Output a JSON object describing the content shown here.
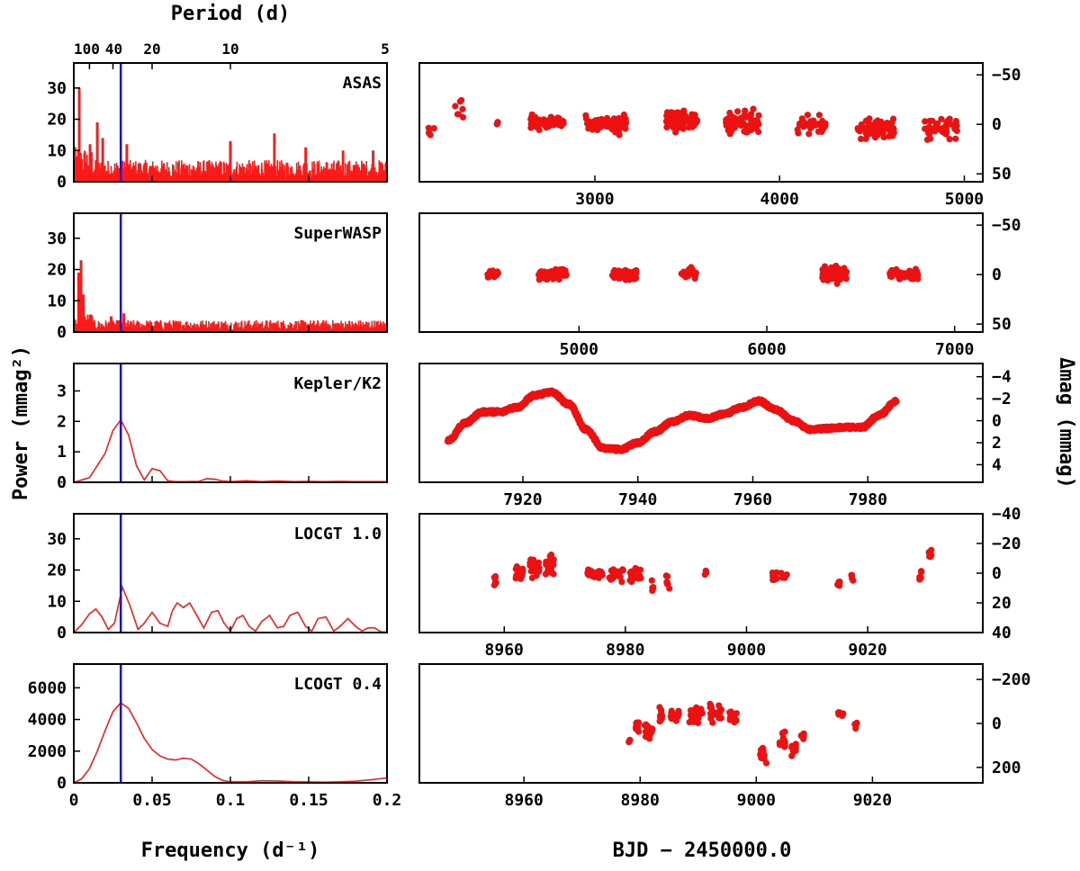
{
  "figure": {
    "left_xlabel": "Frequency (d⁻¹)",
    "right_xlabel": "BJD − 2450000.0",
    "left_ylabel": "Power (mmag²)",
    "right_ylabel": "Δmag (mmag)",
    "top_axis_label": "Period (d)",
    "line_color": "#ff1a1a",
    "marker_color": "#1010ee",
    "point_color": "#ee1111"
  },
  "chart_data": [
    {
      "type": "line",
      "name": "periodogram-asas",
      "title": "ASAS",
      "xlim": [
        0,
        0.2
      ],
      "ylim": [
        0,
        38
      ],
      "xticks": [
        0,
        0.05,
        0.1,
        0.15,
        0.2
      ],
      "yticks": [
        0,
        10,
        20,
        30
      ],
      "ytick_labels": [
        "0",
        "10",
        "20",
        "30"
      ],
      "top_axis": {
        "label": "Period (d)",
        "ticks": [
          {
            "label": "100",
            "freq": 0.01
          },
          {
            "label": "40",
            "freq": 0.025
          },
          {
            "label": "20",
            "freq": 0.05
          },
          {
            "label": "10",
            "freq": 0.1
          },
          {
            "label": "5",
            "freq": 0.2
          }
        ]
      },
      "marker_freq": 0.03,
      "peaks": [
        {
          "f": 0.0035,
          "p": 30
        },
        {
          "f": 0.015,
          "p": 19
        },
        {
          "f": 0.0185,
          "p": 14
        },
        {
          "f": 0.0105,
          "p": 12
        },
        {
          "f": 0.034,
          "p": 12
        },
        {
          "f": 0.1,
          "p": 13
        },
        {
          "f": 0.128,
          "p": 15.5
        },
        {
          "f": 0.148,
          "p": 11
        },
        {
          "f": 0.172,
          "p": 10
        },
        {
          "f": 0.191,
          "p": 10
        }
      ],
      "noise_level": 4.5
    },
    {
      "type": "line",
      "name": "periodogram-superwasp",
      "title": "SuperWASP",
      "xlim": [
        0,
        0.2
      ],
      "ylim": [
        0,
        38
      ],
      "xticks": [
        0,
        0.05,
        0.1,
        0.15,
        0.2
      ],
      "yticks": [
        0,
        10,
        20,
        30
      ],
      "ytick_labels": [
        "0",
        "10",
        "20",
        "30"
      ],
      "marker_freq": 0.03,
      "peaks": [
        {
          "f": 0.0045,
          "p": 23
        },
        {
          "f": 0.003,
          "p": 19
        },
        {
          "f": 0.006,
          "p": 12
        },
        {
          "f": 0.032,
          "p": 6
        },
        {
          "f": 0.024,
          "p": 5
        }
      ],
      "noise_level": 2.5
    },
    {
      "type": "line",
      "name": "periodogram-kepler-k2",
      "title": "Kepler/K2",
      "xlim": [
        0,
        0.2
      ],
      "ylim": [
        0,
        3.9
      ],
      "xticks": [
        0,
        0.05,
        0.1,
        0.15,
        0.2
      ],
      "yticks": [
        0,
        1,
        2,
        3
      ],
      "ytick_labels": [
        "0",
        "1",
        "2",
        "3"
      ],
      "marker_freq": 0.03,
      "curve": {
        "x": [
          0,
          0.01,
          0.02,
          0.025,
          0.03,
          0.035,
          0.04,
          0.045,
          0.05,
          0.055,
          0.06,
          0.065,
          0.07,
          0.08,
          0.085,
          0.09,
          0.095,
          0.1,
          0.11,
          0.12,
          0.13,
          0.14,
          0.15,
          0.16,
          0.17,
          0.18,
          0.19,
          0.2
        ],
        "y": [
          0.0,
          0.15,
          0.95,
          1.7,
          2.05,
          1.55,
          0.55,
          0.08,
          0.45,
          0.38,
          0.05,
          0.02,
          0.02,
          0.03,
          0.12,
          0.1,
          0.04,
          0.02,
          0.05,
          0.02,
          0.04,
          0.02,
          0.03,
          0.02,
          0.03,
          0.02,
          0.02,
          0.02
        ]
      }
    },
    {
      "type": "line",
      "name": "periodogram-lcogt-1.0",
      "title": "LOCGT 1.0",
      "xlim": [
        0,
        0.2
      ],
      "ylim": [
        0,
        38
      ],
      "xticks": [
        0,
        0.05,
        0.1,
        0.15,
        0.2
      ],
      "yticks": [
        0,
        10,
        20,
        30
      ],
      "ytick_labels": [
        "0",
        "10",
        "20",
        "30"
      ],
      "marker_freq": 0.03,
      "curve": {
        "x": [
          0,
          0.005,
          0.01,
          0.014,
          0.018,
          0.022,
          0.026,
          0.031,
          0.036,
          0.041,
          0.045,
          0.05,
          0.055,
          0.06,
          0.063,
          0.066,
          0.07,
          0.074,
          0.078,
          0.083,
          0.088,
          0.092,
          0.096,
          0.1,
          0.104,
          0.108,
          0.112,
          0.116,
          0.12,
          0.125,
          0.13,
          0.134,
          0.138,
          0.143,
          0.148,
          0.152,
          0.156,
          0.161,
          0.166,
          0.17,
          0.175,
          0.18,
          0.184,
          0.188,
          0.192,
          0.196,
          0.2
        ],
        "y": [
          0,
          2.5,
          6,
          7.5,
          5,
          1,
          3,
          14.5,
          8.5,
          1,
          3,
          6.5,
          3,
          2,
          7,
          9.5,
          8,
          9.5,
          6,
          1.5,
          6.5,
          7,
          3,
          0.5,
          4.5,
          5.5,
          2,
          0.5,
          3.5,
          5.5,
          1.5,
          2,
          5.5,
          6.5,
          2,
          0.5,
          4.5,
          5,
          0.5,
          2,
          4.5,
          2,
          0.5,
          1.5,
          1.5,
          0.3,
          0.1
        ]
      }
    },
    {
      "type": "line",
      "name": "periodogram-lcogt-0.4",
      "title": "LCOGT 0.4",
      "xlim": [
        0,
        0.2
      ],
      "ylim": [
        0,
        7500
      ],
      "xticks": [
        0,
        0.05,
        0.1,
        0.15,
        0.2
      ],
      "xtick_labels": [
        "0",
        "0.05",
        "0.1",
        "0.15",
        "0.2"
      ],
      "yticks": [
        0,
        2000,
        4000,
        6000
      ],
      "ytick_labels": [
        "0",
        "2000",
        "4000",
        "6000"
      ],
      "marker_freq": 0.03,
      "curve": {
        "x": [
          0,
          0.005,
          0.01,
          0.015,
          0.02,
          0.025,
          0.03,
          0.035,
          0.04,
          0.045,
          0.05,
          0.055,
          0.06,
          0.065,
          0.07,
          0.075,
          0.08,
          0.085,
          0.09,
          0.095,
          0.1,
          0.11,
          0.12,
          0.13,
          0.14,
          0.15,
          0.16,
          0.17,
          0.18,
          0.19,
          0.2
        ],
        "y": [
          0,
          250,
          900,
          2000,
          3300,
          4500,
          5050,
          4700,
          3800,
          2800,
          2100,
          1700,
          1500,
          1450,
          1550,
          1500,
          1200,
          800,
          400,
          150,
          60,
          60,
          130,
          120,
          70,
          50,
          40,
          60,
          100,
          200,
          300
        ]
      }
    },
    {
      "type": "scatter",
      "name": "lightcurve-asas",
      "xlim": [
        2050,
        5100
      ],
      "ylim": [
        58,
        -62
      ],
      "xticks": [
        3000,
        4000,
        5000
      ],
      "xtick_labels": [
        "3000",
        "4000",
        "5000"
      ],
      "yticks": [
        -50,
        0,
        50
      ],
      "ytick_labels": [
        "−50",
        "0",
        "50"
      ],
      "clusters": [
        {
          "center": 2120,
          "width": 40,
          "n": 5,
          "mean": 7,
          "spread": 16
        },
        {
          "center": 2260,
          "width": 60,
          "n": 7,
          "mean": -15,
          "spread": 28
        },
        {
          "center": 2470,
          "width": 10,
          "n": 3,
          "mean": -1,
          "spread": 8
        },
        {
          "center": 2740,
          "width": 180,
          "n": 70,
          "mean": -2,
          "spread": 16
        },
        {
          "center": 3060,
          "width": 220,
          "n": 80,
          "mean": 0,
          "spread": 22
        },
        {
          "center": 3470,
          "width": 170,
          "n": 60,
          "mean": -4,
          "spread": 26
        },
        {
          "center": 3800,
          "width": 180,
          "n": 65,
          "mean": -2,
          "spread": 27
        },
        {
          "center": 4180,
          "width": 170,
          "n": 30,
          "mean": 0,
          "spread": 23
        },
        {
          "center": 4520,
          "width": 200,
          "n": 80,
          "mean": 4,
          "spread": 25
        },
        {
          "center": 4870,
          "width": 180,
          "n": 45,
          "mean": 3,
          "spread": 26
        }
      ]
    },
    {
      "type": "scatter",
      "name": "lightcurve-superwasp",
      "xlim": [
        4150,
        7150
      ],
      "ylim": [
        58,
        -62
      ],
      "xticks": [
        5000,
        6000,
        7000
      ],
      "xtick_labels": [
        "5000",
        "6000",
        "7000"
      ],
      "yticks": [
        -50,
        0,
        50
      ],
      "ytick_labels": [
        "−50",
        "0",
        "50"
      ],
      "clusters": [
        {
          "center": 4540,
          "width": 60,
          "n": 35,
          "mean": 0,
          "spread": 9
        },
        {
          "center": 4860,
          "width": 150,
          "n": 70,
          "mean": 0,
          "spread": 12
        },
        {
          "center": 5240,
          "width": 130,
          "n": 75,
          "mean": 0,
          "spread": 12
        },
        {
          "center": 5580,
          "width": 90,
          "n": 20,
          "mean": -1,
          "spread": 12
        },
        {
          "center": 6360,
          "width": 130,
          "n": 75,
          "mean": 0,
          "spread": 19
        },
        {
          "center": 6730,
          "width": 150,
          "n": 60,
          "mean": 0,
          "spread": 11
        }
      ]
    },
    {
      "type": "line",
      "name": "lightcurve-kepler-k2",
      "xlim": [
        7902,
        8000
      ],
      "ylim": [
        5.6,
        -5.2
      ],
      "xticks": [
        7920,
        7940,
        7960,
        7980
      ],
      "xtick_labels": [
        "7920",
        "7940",
        "7960",
        "7980"
      ],
      "yticks": [
        -4,
        -2,
        0,
        2,
        4
      ],
      "ytick_labels": [
        "−4",
        "−2",
        "0",
        "2",
        "4"
      ],
      "curve": {
        "x": [
          7907,
          7910,
          7913,
          7916,
          7919,
          7922,
          7925,
          7928,
          7931,
          7934,
          7937,
          7940,
          7943,
          7946,
          7949,
          7952,
          7955,
          7958,
          7961,
          7964,
          7967,
          7970,
          7973,
          7976,
          7979,
          7982,
          7985
        ],
        "y": [
          1.8,
          0.2,
          -0.8,
          -0.8,
          -1.2,
          -2.3,
          -2.6,
          -1.5,
          0.8,
          2.5,
          2.6,
          2.0,
          1.0,
          0.1,
          -0.5,
          -0.2,
          -0.6,
          -1.2,
          -1.8,
          -1.0,
          0.0,
          0.8,
          0.7,
          0.6,
          0.6,
          -0.5,
          -1.8
        ]
      }
    },
    {
      "type": "scatter",
      "name": "lightcurve-lcogt-1.0",
      "xlim": [
        8946,
        9039
      ],
      "ylim": [
        40,
        -40
      ],
      "xticks": [
        8960,
        8980,
        9000,
        9020
      ],
      "xtick_labels": [
        "8960",
        "8980",
        "9000",
        "9020"
      ],
      "yticks": [
        -40,
        -20,
        0,
        20,
        40
      ],
      "ytick_labels": [
        "−40",
        "−20",
        "0",
        "20",
        "40"
      ],
      "clusters": [
        {
          "center": 8958.5,
          "width": 0.4,
          "n": 6,
          "mean": 5,
          "spread": 10
        },
        {
          "center": 8962.5,
          "width": 1.2,
          "n": 20,
          "mean": 0,
          "spread": 10
        },
        {
          "center": 8965,
          "width": 1.6,
          "n": 28,
          "mean": -3,
          "spread": 14
        },
        {
          "center": 8967.5,
          "width": 1.4,
          "n": 28,
          "mean": -4,
          "spread": 22
        },
        {
          "center": 8975,
          "width": 2.5,
          "n": 25,
          "mean": 0,
          "spread": 8
        },
        {
          "center": 8978.5,
          "width": 2.5,
          "n": 25,
          "mean": 1,
          "spread": 10
        },
        {
          "center": 8981.5,
          "width": 2.2,
          "n": 22,
          "mean": 1,
          "spread": 10
        },
        {
          "center": 8984.5,
          "width": 0.4,
          "n": 5,
          "mean": 8,
          "spread": 10
        },
        {
          "center": 8987,
          "width": 0.6,
          "n": 7,
          "mean": 5,
          "spread": 12
        },
        {
          "center": 8993.2,
          "width": 0.4,
          "n": 4,
          "mean": 0,
          "spread": 5
        },
        {
          "center": 9005.5,
          "width": 2.5,
          "n": 16,
          "mean": 2,
          "spread": 8
        },
        {
          "center": 9015.2,
          "width": 0.4,
          "n": 6,
          "mean": 7,
          "spread": 8
        },
        {
          "center": 9017.5,
          "width": 0.4,
          "n": 4,
          "mean": 4,
          "spread": 6
        },
        {
          "center": 9028.7,
          "width": 0.4,
          "n": 6,
          "mean": 3,
          "spread": 12
        },
        {
          "center": 9030.3,
          "width": 0.4,
          "n": 6,
          "mean": -13,
          "spread": 12
        }
      ]
    },
    {
      "type": "scatter",
      "name": "lightcurve-lcogt-0.4",
      "xlim": [
        8942,
        9039
      ],
      "ylim": [
        270,
        -270
      ],
      "xticks": [
        8960,
        8980,
        9000,
        9020
      ],
      "xtick_labels": [
        "8960",
        "8980",
        "9000",
        "9020"
      ],
      "yticks": [
        -200,
        0,
        200
      ],
      "ytick_labels": [
        "−200",
        "0",
        "200"
      ],
      "clusters": [
        {
          "center": 8978.2,
          "width": 0.4,
          "n": 4,
          "mean": 80,
          "spread": 20
        },
        {
          "center": 8979.5,
          "width": 0.6,
          "n": 12,
          "mean": 20,
          "spread": 90
        },
        {
          "center": 8981.5,
          "width": 1.4,
          "n": 18,
          "mean": 25,
          "spread": 90
        },
        {
          "center": 8983.5,
          "width": 0.8,
          "n": 12,
          "mean": -40,
          "spread": 90
        },
        {
          "center": 8986,
          "width": 1.6,
          "n": 18,
          "mean": -30,
          "spread": 70
        },
        {
          "center": 8989.5,
          "width": 2.5,
          "n": 30,
          "mean": -40,
          "spread": 90
        },
        {
          "center": 8993,
          "width": 2.0,
          "n": 22,
          "mean": -50,
          "spread": 110
        },
        {
          "center": 8996,
          "width": 1.4,
          "n": 15,
          "mean": -20,
          "spread": 80
        },
        {
          "center": 9001.2,
          "width": 1.2,
          "n": 18,
          "mean": 150,
          "spread": 80
        },
        {
          "center": 9004.5,
          "width": 1.0,
          "n": 16,
          "mean": 80,
          "spread": 110
        },
        {
          "center": 9006.5,
          "width": 0.9,
          "n": 10,
          "mean": 110,
          "spread": 70
        },
        {
          "center": 9008,
          "width": 0.6,
          "n": 6,
          "mean": 60,
          "spread": 40
        },
        {
          "center": 9014.5,
          "width": 1.0,
          "n": 10,
          "mean": -40,
          "spread": 30
        },
        {
          "center": 9017.2,
          "width": 0.5,
          "n": 6,
          "mean": 10,
          "spread": 40
        }
      ]
    }
  ]
}
